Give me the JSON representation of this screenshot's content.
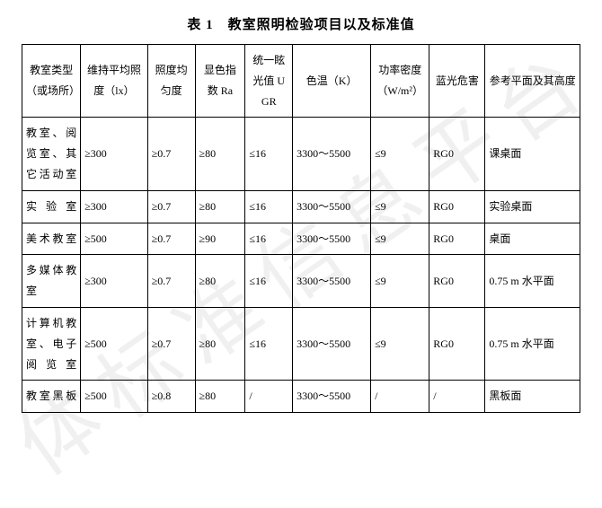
{
  "title": "表 1　教室照明检验项目以及标准值",
  "watermark": "体标准信息平台",
  "columns": [
    "教室类型（或场所）",
    "维持平均照度（lx）",
    "照度均匀度",
    "显色指数 Ra",
    "统一眩光值 UGR",
    "色温（K）",
    "功率密度（W/m²）",
    "蓝光危害",
    "参考平面及其高度"
  ],
  "rows": [
    {
      "label": "教室、阅览室、其它活动室",
      "cells": [
        "≥300",
        "≥0.7",
        "≥80",
        "≤16",
        "3300～5500",
        "≤9",
        "RG0",
        "课桌面"
      ]
    },
    {
      "label": "实验室",
      "cells": [
        "≥300",
        "≥0.7",
        "≥80",
        "≤16",
        "3300～5500",
        "≤9",
        "RG0",
        "实验桌面"
      ]
    },
    {
      "label": "美术教室",
      "cells": [
        "≥500",
        "≥0.7",
        "≥90",
        "≤16",
        "3300～5500",
        "≤9",
        "RG0",
        "桌面"
      ]
    },
    {
      "label": "多媒体教室",
      "cells": [
        "≥300",
        "≥0.7",
        "≥80",
        "≤16",
        "3300～5500",
        "≤9",
        "RG0",
        "0.75 m 水平面"
      ]
    },
    {
      "label": "计算机教室、电子阅览室",
      "cells": [
        "≥500",
        "≥0.7",
        "≥80",
        "≤16",
        "3300～5500",
        "≤9",
        "RG0",
        "0.75 m 水平面"
      ]
    },
    {
      "label": "教室黑板",
      "cells": [
        "≥500",
        "≥0.8",
        "≥80",
        "/",
        "3300～5500",
        "/",
        "/",
        "黑板面"
      ]
    }
  ]
}
